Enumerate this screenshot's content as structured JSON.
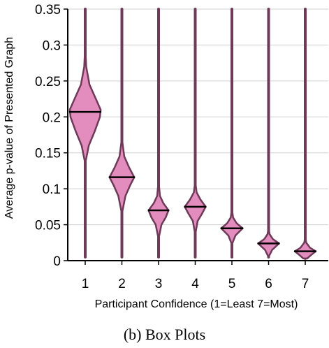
{
  "caption": "(b) Box Plots",
  "chart_data": {
    "type": "violin",
    "xlabel": "Participant Confidence (1=Least 7=Most)",
    "ylabel": "Average p-value of Presented Graph",
    "categories": [
      "1",
      "2",
      "3",
      "4",
      "5",
      "6",
      "7"
    ],
    "ylim": [
      0,
      0.35
    ],
    "yticks": [
      "0",
      "0.05",
      "0.1",
      "0.15",
      "0.2",
      "0.25",
      "0.3",
      "0.35"
    ],
    "grid": "horizontal",
    "colors": {
      "fill": "#e38dbe",
      "outline": "#6e3a58",
      "median": "#000000",
      "grid": "#d0d0d0"
    },
    "medians": [
      0.207,
      0.116,
      0.07,
      0.075,
      0.045,
      0.024,
      0.013
    ],
    "violins": [
      {
        "category": "1",
        "median": 0.207,
        "spine": [
          0.005,
          0.35
        ],
        "profile": [
          [
            0.14,
            0.003
          ],
          [
            0.16,
            0.015
          ],
          [
            0.18,
            0.04
          ],
          [
            0.2,
            0.062
          ],
          [
            0.21,
            0.065
          ],
          [
            0.225,
            0.045
          ],
          [
            0.245,
            0.018
          ],
          [
            0.27,
            0.004
          ],
          [
            0.29,
            0.0015
          ]
        ]
      },
      {
        "category": "2",
        "median": 0.116,
        "spine": [
          0.005,
          0.35
        ],
        "profile": [
          [
            0.07,
            0.003
          ],
          [
            0.09,
            0.015
          ],
          [
            0.105,
            0.035
          ],
          [
            0.116,
            0.052
          ],
          [
            0.13,
            0.03
          ],
          [
            0.145,
            0.01
          ],
          [
            0.165,
            0.002
          ]
        ]
      },
      {
        "category": "3",
        "median": 0.07,
        "spine": [
          0.005,
          0.35
        ],
        "profile": [
          [
            0.035,
            0.003
          ],
          [
            0.05,
            0.012
          ],
          [
            0.06,
            0.03
          ],
          [
            0.07,
            0.042
          ],
          [
            0.08,
            0.02
          ],
          [
            0.09,
            0.006
          ],
          [
            0.108,
            0.001
          ]
        ]
      },
      {
        "category": "4",
        "median": 0.075,
        "spine": [
          0.005,
          0.35
        ],
        "profile": [
          [
            0.04,
            0.002
          ],
          [
            0.055,
            0.01
          ],
          [
            0.065,
            0.028
          ],
          [
            0.075,
            0.044
          ],
          [
            0.085,
            0.022
          ],
          [
            0.095,
            0.006
          ],
          [
            0.108,
            0.001
          ]
        ]
      },
      {
        "category": "5",
        "median": 0.045,
        "spine": [
          0.005,
          0.35
        ],
        "profile": [
          [
            0.025,
            0.003
          ],
          [
            0.035,
            0.015
          ],
          [
            0.045,
            0.045
          ],
          [
            0.052,
            0.02
          ],
          [
            0.06,
            0.005
          ],
          [
            0.07,
            0.001
          ]
        ]
      },
      {
        "category": "6",
        "median": 0.024,
        "spine": [
          0.005,
          0.35
        ],
        "profile": [
          [
            0.007,
            0.003
          ],
          [
            0.015,
            0.015
          ],
          [
            0.024,
            0.044
          ],
          [
            0.03,
            0.018
          ],
          [
            0.037,
            0.004
          ],
          [
            0.045,
            0.001
          ]
        ]
      },
      {
        "category": "7",
        "median": 0.013,
        "spine": [
          0.003,
          0.35
        ],
        "profile": [
          [
            0.003,
            0.008
          ],
          [
            0.008,
            0.025
          ],
          [
            0.013,
            0.044
          ],
          [
            0.018,
            0.02
          ],
          [
            0.025,
            0.004
          ],
          [
            0.032,
            0.001
          ]
        ]
      }
    ]
  }
}
